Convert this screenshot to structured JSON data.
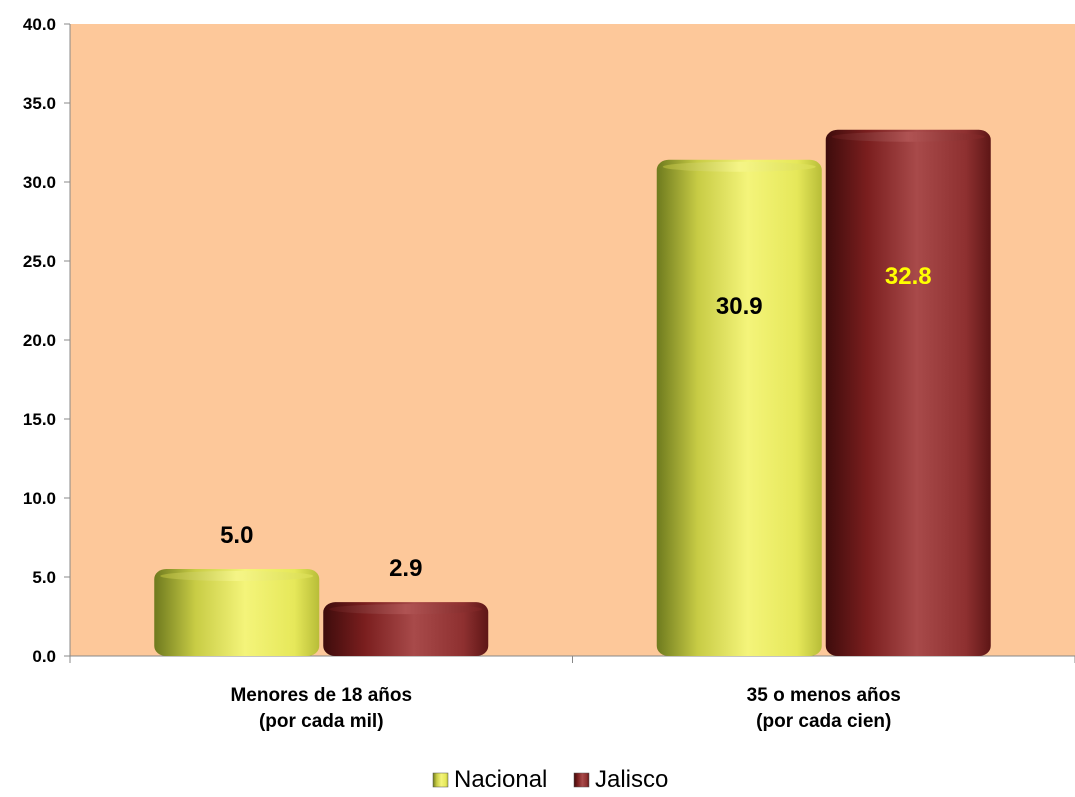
{
  "chart_data": {
    "type": "bar",
    "title": "",
    "xlabel": "",
    "ylabel": "",
    "ylim": [
      0,
      40
    ],
    "yticks": [
      "0.0",
      "5.0",
      "10.0",
      "15.0",
      "20.0",
      "25.0",
      "30.0",
      "35.0",
      "40.0"
    ],
    "categories": [
      [
        "Menores de 18 años",
        "(por cada mil)"
      ],
      [
        "35 o menos años",
        "(por cada cien)"
      ]
    ],
    "series": [
      {
        "name": "Nacional",
        "values": [
          5.0,
          30.9
        ],
        "labels": [
          "5.0",
          "30.9"
        ],
        "color": "#e8e860"
      },
      {
        "name": "Jalisco",
        "values": [
          2.9,
          32.8
        ],
        "labels": [
          "2.9",
          "32.8"
        ],
        "color": "#8b2a2a"
      }
    ],
    "plot_background": "#fdc89a",
    "label_colors": [
      "#000000",
      "#ffff00"
    ],
    "grid": false,
    "legend": "bottom-center",
    "shape": "cylinder"
  }
}
